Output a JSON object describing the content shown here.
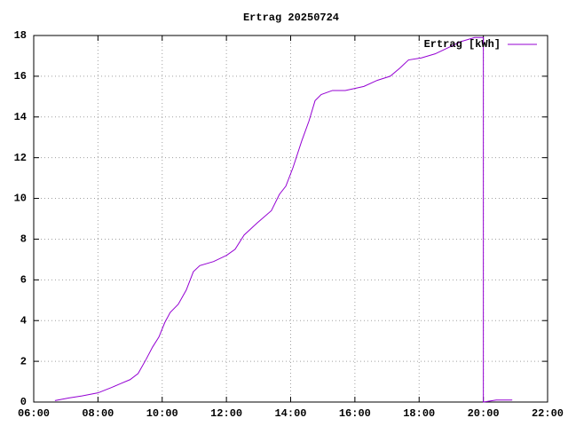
{
  "chart_data": {
    "type": "line",
    "title": "Ertrag 20250724",
    "x": [
      6.66,
      7.1,
      7.5,
      8.0,
      8.4,
      8.7,
      9.0,
      9.25,
      9.5,
      9.7,
      9.9,
      10.08,
      10.25,
      10.5,
      10.75,
      10.97,
      11.17,
      11.6,
      12.0,
      12.27,
      12.55,
      12.96,
      13.4,
      13.65,
      13.85,
      14.07,
      14.34,
      14.57,
      14.76,
      14.95,
      15.3,
      15.7,
      16.0,
      16.28,
      16.7,
      17.1,
      17.4,
      17.67,
      18.07,
      18.5,
      18.9,
      19.3,
      19.73,
      20.0,
      20.0,
      20.4,
      20.9
    ],
    "series": [
      {
        "name": "Ertrag [kWh]",
        "color": "#9400d3",
        "values": [
          0.07,
          0.2,
          0.3,
          0.45,
          0.7,
          0.9,
          1.1,
          1.4,
          2.1,
          2.7,
          3.2,
          3.9,
          4.4,
          4.8,
          5.5,
          6.4,
          6.7,
          6.9,
          7.2,
          7.5,
          8.2,
          8.8,
          9.4,
          10.2,
          10.6,
          11.5,
          12.8,
          13.8,
          14.8,
          15.1,
          15.3,
          15.3,
          15.4,
          15.5,
          15.8,
          16.0,
          16.4,
          16.8,
          16.9,
          17.1,
          17.4,
          17.7,
          17.9,
          17.9,
          0,
          0.1,
          0.1
        ]
      }
    ],
    "xlim": [
      6,
      22
    ],
    "xticks": [
      {
        "value": 6,
        "label": "06:00"
      },
      {
        "value": 8,
        "label": "08:00"
      },
      {
        "value": 10,
        "label": "10:00"
      },
      {
        "value": 12,
        "label": "12:00"
      },
      {
        "value": 14,
        "label": "14:00"
      },
      {
        "value": 16,
        "label": "16:00"
      },
      {
        "value": 18,
        "label": "18:00"
      },
      {
        "value": 20,
        "label": "20:00"
      },
      {
        "value": 22,
        "label": "22:00"
      }
    ],
    "ylim": [
      0,
      18
    ],
    "yticks": [
      0,
      2,
      4,
      6,
      8,
      10,
      12,
      14,
      16,
      18
    ],
    "grid": true,
    "legend": "top-right"
  }
}
